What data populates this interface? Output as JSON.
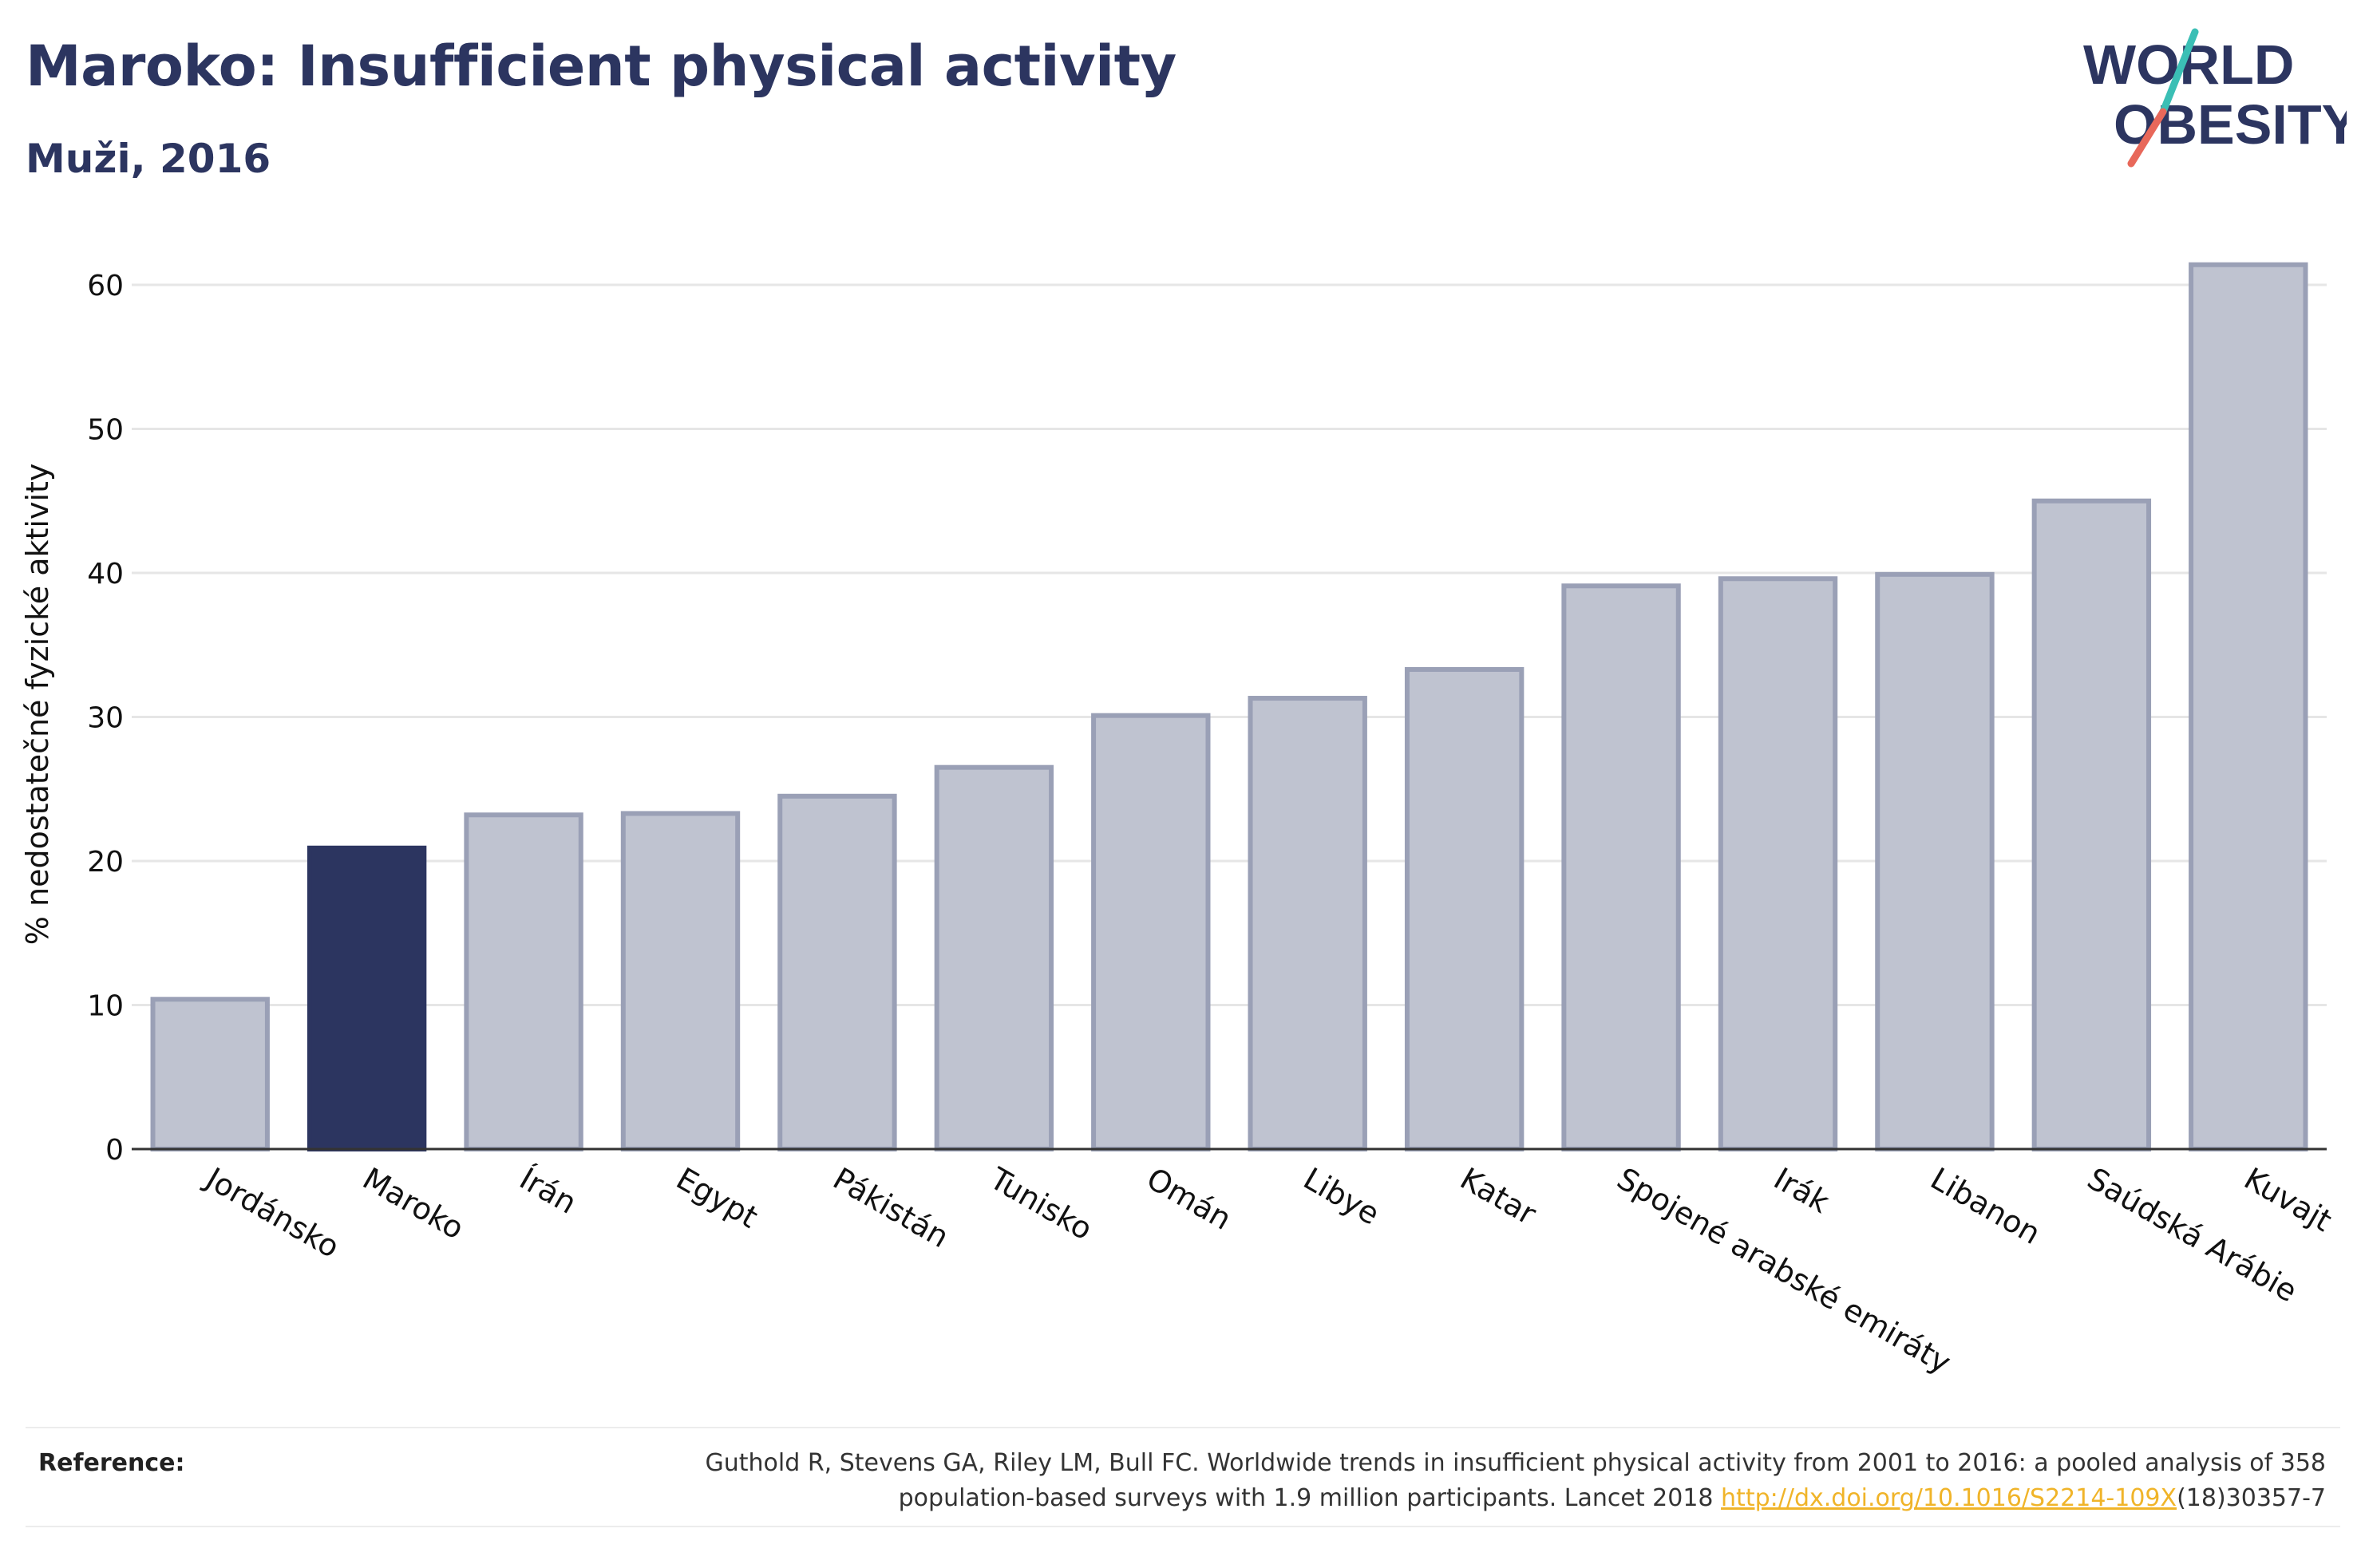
{
  "header": {
    "title": "Maroko: Insufficient physical activity",
    "subtitle": "Muži, 2016"
  },
  "logo": {
    "line1": "WORLD",
    "line2": "OBESITY",
    "colors": {
      "text": "#2c3560",
      "slash_teal": "#3bbfb5",
      "slash_coral": "#e8685a"
    }
  },
  "chart_data": {
    "type": "bar",
    "ylabel": "% nedostatečné fyzické aktivity",
    "xlabel": "",
    "ylim": [
      0,
      64
    ],
    "yticks": [
      0,
      10,
      20,
      30,
      40,
      50,
      60
    ],
    "grid": true,
    "categories": [
      "Jordánsko",
      "Maroko",
      "Írán",
      "Egypt",
      "Pákistán",
      "Tunisko",
      "Omán",
      "Libye",
      "Katar",
      "Spojené arabské emiráty",
      "Irák",
      "Libanon",
      "Saúdská Arábie",
      "Kuvajt"
    ],
    "values": [
      10.4,
      20.9,
      23.2,
      23.3,
      24.5,
      26.5,
      30.1,
      31.3,
      33.3,
      39.1,
      39.6,
      39.9,
      45.0,
      61.4
    ],
    "highlight": "Maroko",
    "colors": {
      "bar": "#bfc3d0",
      "bar_border": "#9aa0b6",
      "highlight": "#2c3560",
      "grid": "#e6e6e6",
      "axis": "#333333"
    }
  },
  "reference": {
    "label": "Reference:",
    "text_line1": "Guthold R, Stevens GA, Riley LM, Bull FC. Worldwide trends in insufficient physical activity from 2001 to 2016: a pooled analysis of 358",
    "text_line2_pre": "population-based surveys with 1.9 million participants. Lancet 2018 ",
    "link": "http://dx.doi.org/10.1016/S2214-109X",
    "text_line2_post": "(18)30357-7"
  }
}
